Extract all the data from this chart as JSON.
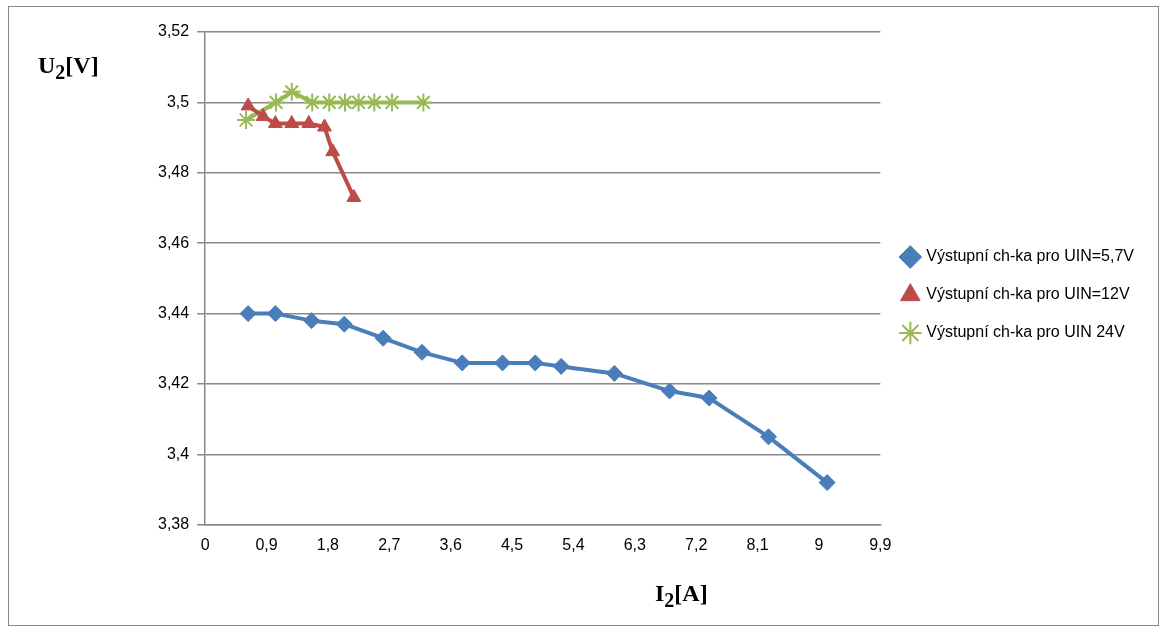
{
  "chart_data": {
    "type": "line",
    "xlabel": "I$_{2}$[A]",
    "ylabel": "U$_{2}$[V]",
    "xlim": [
      0,
      9.9
    ],
    "xticks": [
      0,
      {
        "value": 0.9,
        "label": "0,9"
      },
      {
        "value": 1.8,
        "label": "1,8"
      },
      {
        "value": 2.7,
        "label": "2,7"
      },
      {
        "value": 3.6,
        "label": "3,6"
      },
      {
        "value": 4.5,
        "label": "4,5"
      },
      {
        "value": 5.4,
        "label": "5,4"
      },
      {
        "value": 6.3,
        "label": "6,3"
      },
      {
        "value": 7.2,
        "label": "7,2"
      },
      {
        "value": 8.1,
        "label": "8,1"
      },
      9,
      {
        "value": 9.9,
        "label": "9,9"
      }
    ],
    "ylim": [
      3.38,
      3.52
    ],
    "yticks": [
      {
        "value": 3.38,
        "label": "3,38"
      },
      {
        "value": 3.4,
        "label": "3,4"
      },
      {
        "value": 3.42,
        "label": "3,42"
      },
      {
        "value": 3.44,
        "label": "3,44"
      },
      {
        "value": 3.46,
        "label": "3,46"
      },
      {
        "value": 3.48,
        "label": "3,48"
      },
      {
        "value": 3.5,
        "label": "3,5"
      },
      {
        "value": 3.52,
        "label": "3,52"
      }
    ],
    "grid": "y",
    "legend": "right",
    "series": [
      {
        "name": "Výstupní ch-ka pro UIN=5,7V",
        "color": "#4a7ebb",
        "marker": "diamond",
        "x": [
          0.63,
          1.03,
          1.56,
          2.04,
          2.61,
          3.18,
          3.77,
          4.36,
          4.84,
          5.22,
          6.0,
          6.81,
          7.39,
          8.26,
          9.12
        ],
        "values": [
          3.44,
          3.44,
          3.438,
          3.437,
          3.433,
          3.429,
          3.426,
          3.426,
          3.426,
          3.425,
          3.423,
          3.418,
          3.416,
          3.405,
          3.392
        ]
      },
      {
        "name": "Výstupní ch-ka pro UIN=12V",
        "color": "#be4b48",
        "marker": "triangle",
        "x": [
          0.63,
          0.85,
          1.03,
          1.27,
          1.52,
          1.75,
          1.87,
          2.18
        ],
        "values": [
          3.499,
          3.496,
          3.494,
          3.494,
          3.494,
          3.493,
          3.486,
          3.473
        ]
      },
      {
        "name": "Výstupní ch-ka pro UIN 24V",
        "color": "#98b954",
        "marker": "cross",
        "x": [
          0.6,
          1.04,
          1.27,
          1.57,
          1.82,
          2.05,
          2.25,
          2.48,
          2.74,
          3.2
        ],
        "values": [
          3.495,
          3.5,
          3.503,
          3.5,
          3.5,
          3.5,
          3.5,
          3.5,
          3.5,
          3.5
        ]
      }
    ]
  }
}
